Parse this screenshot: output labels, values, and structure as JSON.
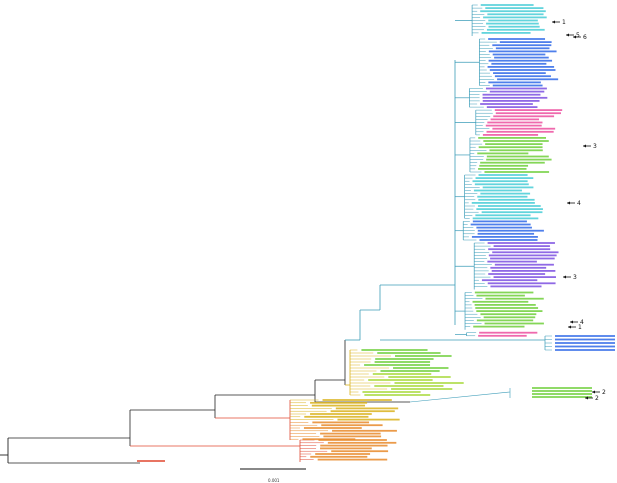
{
  "figure": {
    "type": "phylogenetic-tree",
    "scale_bar_label": "0.001",
    "clade_colors": {
      "root": "#222222",
      "main_blue": "#3b9cb8",
      "yellow": "#d9b21b",
      "red": "#e04a33",
      "green": "#6fcf3a",
      "pink": "#ec4f9f",
      "purple": "#7b4fe0",
      "cyan": "#46cdd6",
      "blue": "#2f68e8",
      "orange": "#e88a2a",
      "lime": "#a7d93a"
    },
    "markers": [
      {
        "label": "1"
      },
      {
        "label": "5"
      },
      {
        "label": "6"
      },
      {
        "label": "3"
      },
      {
        "label": "4"
      },
      {
        "label": "3"
      },
      {
        "label": "4"
      },
      {
        "label": "1"
      },
      {
        "label": "2"
      },
      {
        "label": "2"
      }
    ]
  }
}
